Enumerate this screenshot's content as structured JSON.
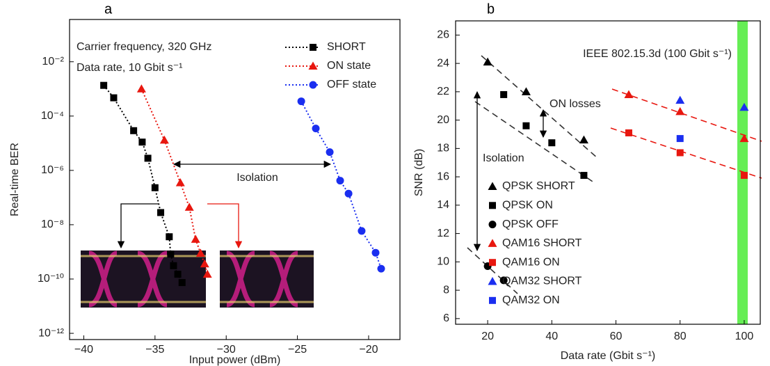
{
  "chart_data": [
    {
      "type": "line",
      "panel_label": "a",
      "xlabel": "Input power (dBm)",
      "ylabel": "Real-time BER",
      "log_y": true,
      "xlim": [
        -41,
        -17.8
      ],
      "ylim": [
        5.9e-13,
        0.36
      ],
      "xticks": [
        {
          "value": -40,
          "label": "−40"
        },
        {
          "value": -35,
          "label": "−35"
        },
        {
          "value": -30,
          "label": "−30"
        },
        {
          "value": -25,
          "label": "−25"
        },
        {
          "value": -20,
          "label": "−20"
        }
      ],
      "yticks": [
        {
          "value": 1e-12,
          "label": "10⁻¹²"
        },
        {
          "value": 1e-10,
          "label": "10⁻¹⁰"
        },
        {
          "value": 1e-08,
          "label": "10⁻⁸"
        },
        {
          "value": 1e-06,
          "label": "10⁻⁶"
        },
        {
          "value": 0.0001,
          "label": "10⁻⁴"
        },
        {
          "value": 0.01,
          "label": "10⁻²"
        }
      ],
      "annotations": [
        "Carrier frequency, 320 GHz",
        "Data rate, 10 Gbit s⁻¹",
        "Isolation"
      ],
      "legend": "upper right",
      "series": [
        {
          "name": "SHORT",
          "color": "#000000",
          "marker": "square",
          "line_style": "dotted",
          "x": [
            -38.6,
            -37.9,
            -36.5,
            -35.9,
            -35.5,
            -35.0,
            -34.6,
            -34.0,
            -33.9,
            -33.7,
            -33.4,
            -33.1
          ],
          "values": [
            0.00135,
            0.00047,
            2.9e-05,
            1.1e-05,
            2.8e-06,
            2.3e-07,
            2.8e-08,
            3.6e-09,
            8.3e-10,
            3.1e-10,
            1.5e-10,
            7.4e-11
          ]
        },
        {
          "name": "ON state",
          "color": "#e8170f",
          "marker": "triangle",
          "line_style": "dotted",
          "x": [
            -35.95,
            -34.34,
            -33.22,
            -32.59,
            -32.15,
            -31.8,
            -31.51,
            -31.32
          ],
          "values": [
            0.001,
            1.3e-05,
            3.5e-07,
            4.4e-08,
            2.9e-09,
            8.9e-10,
            3.6e-10,
            1.5e-10
          ]
        },
        {
          "name": "OFF state",
          "color": "#1a2ef0",
          "marker": "circle",
          "line_style": "dotted",
          "x": [
            -24.73,
            -23.71,
            -22.73,
            -22.0,
            -21.41,
            -20.49,
            -19.51,
            -19.12
          ],
          "values": [
            0.00035,
            3.5e-05,
            4.7e-06,
            4.2e-07,
            1.4e-07,
            5.9e-09,
            9.3e-10,
            2.4e-10
          ]
        }
      ]
    },
    {
      "type": "scatter",
      "panel_label": "b",
      "xlabel": "Data rate (Gbit s⁻¹)",
      "ylabel": "SNR (dB)",
      "xlim": [
        10,
        105
      ],
      "ylim": [
        5.6,
        27
      ],
      "xticks": [
        20,
        40,
        60,
        80,
        100
      ],
      "yticks": [
        6,
        8,
        10,
        12,
        14,
        16,
        18,
        20,
        22,
        24,
        26
      ],
      "annotations": [
        "IEEE 802.15.3d (100 Gbit s⁻¹)",
        "ON losses",
        "Isolation"
      ],
      "legend": "lower right",
      "series": [
        {
          "name": "QPSK SHORT",
          "color": "#000000",
          "marker": "triangle",
          "x": [
            20,
            32,
            50
          ],
          "values": [
            24.1,
            22.0,
            18.6
          ]
        },
        {
          "name": "QPSK ON",
          "color": "#000000",
          "marker": "square",
          "x": [
            25,
            32,
            40,
            50
          ],
          "values": [
            21.8,
            19.6,
            18.4,
            16.1
          ]
        },
        {
          "name": "QPSK OFF",
          "color": "#000000",
          "marker": "circle",
          "x": [
            20,
            25
          ],
          "values": [
            9.7,
            8.7
          ]
        },
        {
          "name": "QAM16 SHORT",
          "color": "#e8170f",
          "marker": "triangle",
          "x": [
            64,
            80,
            100
          ],
          "values": [
            21.8,
            20.6,
            18.7
          ]
        },
        {
          "name": "QAM16 ON",
          "color": "#e8170f",
          "marker": "square",
          "x": [
            64,
            80,
            100
          ],
          "values": [
            19.1,
            17.7,
            16.1
          ]
        },
        {
          "name": "QAM32 SHORT",
          "color": "#1a2ef0",
          "marker": "triangle",
          "x": [
            80,
            100
          ],
          "values": [
            21.4,
            20.9
          ]
        },
        {
          "name": "QAM32 ON",
          "color": "#1a2ef0",
          "marker": "square",
          "x": [
            80
          ],
          "values": [
            18.7
          ]
        }
      ]
    }
  ]
}
